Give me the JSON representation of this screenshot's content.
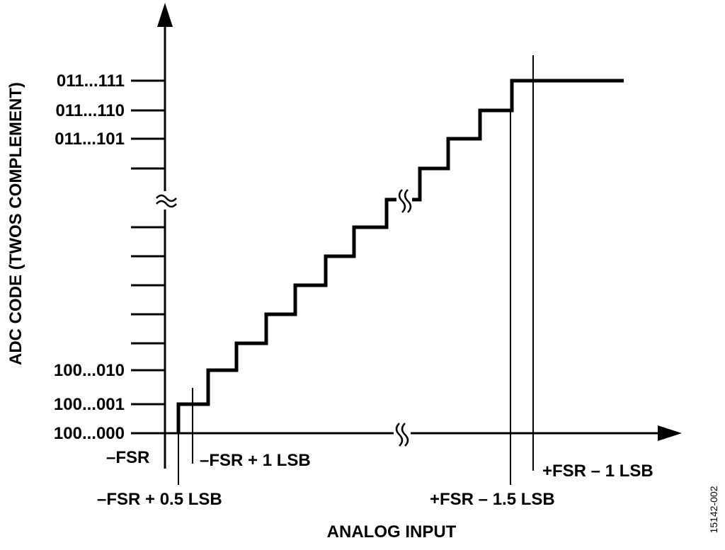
{
  "y_axis": {
    "title": "ADC CODE (TWOS COMPLEMENT)",
    "tick_labels": [
      "011...111",
      "011...110",
      "011...101",
      "100...010",
      "100...001",
      "100...000"
    ]
  },
  "x_axis": {
    "title": "ANALOG INPUT",
    "markers": [
      "–FSR",
      "–FSR + 1 LSB",
      "–FSR + 0.5 LSB",
      "+FSR – 1.5 LSB",
      "+FSR – 1 LSB"
    ]
  },
  "figure_id": "15142-002"
}
